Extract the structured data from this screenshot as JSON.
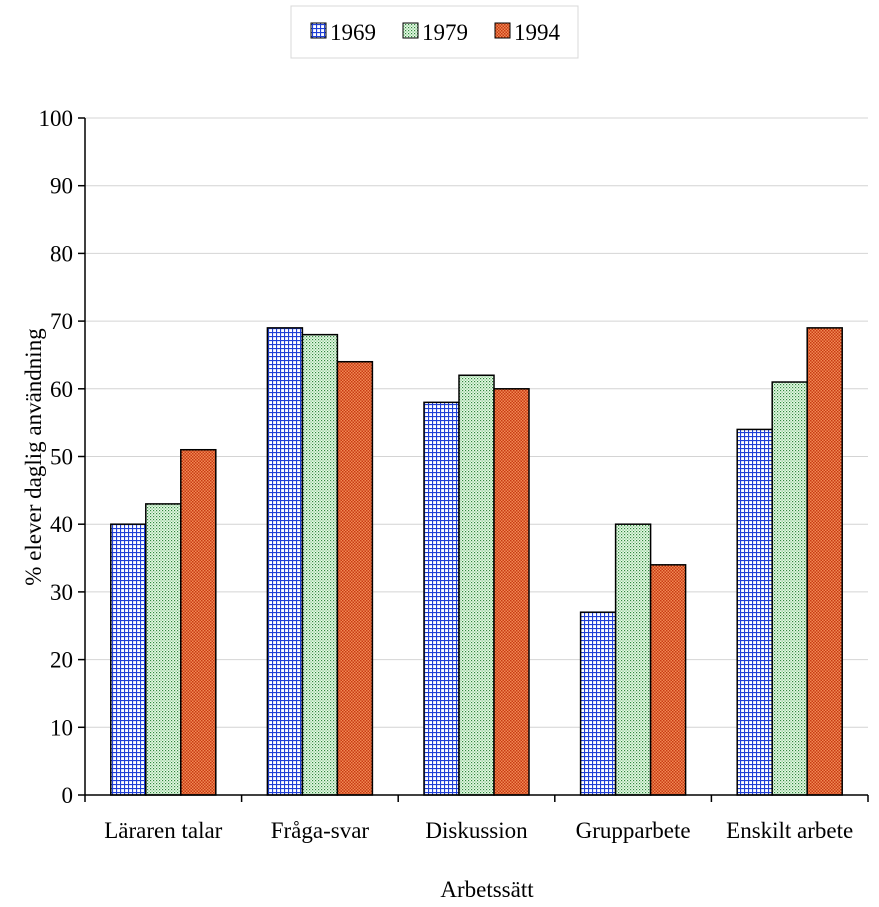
{
  "chart_data": {
    "type": "bar",
    "title": "",
    "xlabel": "Arbetssätt",
    "ylabel": "% elever daglig användning",
    "ylim": [
      0,
      100
    ],
    "yticks": [
      0,
      10,
      20,
      30,
      40,
      50,
      60,
      70,
      80,
      90,
      100
    ],
    "grid": true,
    "legend_position": "top-center",
    "categories": [
      "Läraren talar",
      "Fråga-svar",
      "Diskussion",
      "Grupparbete",
      "Enskilt arbete"
    ],
    "series": [
      {
        "name": "1969",
        "values": [
          40,
          69,
          58,
          27,
          54
        ],
        "color": "#1f3fd6",
        "pattern": "grid"
      },
      {
        "name": "1979",
        "values": [
          43,
          68,
          62,
          40,
          61
        ],
        "color": "#2e8b3a",
        "pattern": "dots"
      },
      {
        "name": "1994",
        "values": [
          51,
          64,
          60,
          34,
          69
        ],
        "color": "#d4451e",
        "pattern": "checker"
      }
    ]
  }
}
